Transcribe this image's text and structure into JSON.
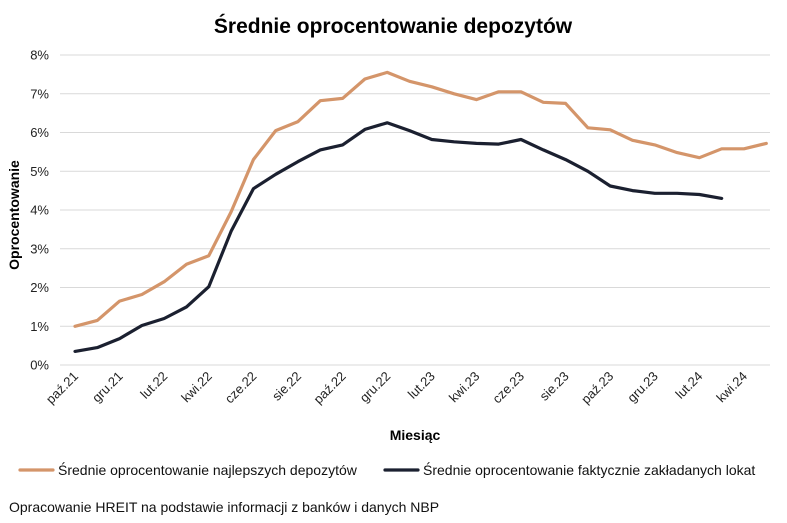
{
  "chart_data": {
    "type": "line",
    "title": "Średnie oprocentowanie depozytów",
    "xlabel": "Miesiąc",
    "ylabel": "Oprocentowanie",
    "ylim": [
      0,
      8
    ],
    "yticks": [
      "0%",
      "1%",
      "2%",
      "3%",
      "4%",
      "5%",
      "6%",
      "7%",
      "8%"
    ],
    "xtick_labels": [
      "paź.21",
      "gru.21",
      "lut.22",
      "kwi.22",
      "cze.22",
      "sie.22",
      "paź.22",
      "gru.22",
      "lut.23",
      "kwi.23",
      "cze.23",
      "sie.23",
      "paź.23",
      "gru.23",
      "lut.24",
      "kwi.24"
    ],
    "series": [
      {
        "name": "Średnie oprocentowanie najlepszych depozytów",
        "color": "#D4956A",
        "values": [
          1.0,
          1.15,
          1.65,
          1.82,
          2.15,
          2.6,
          2.82,
          3.95,
          5.3,
          6.05,
          6.28,
          6.82,
          6.88,
          7.38,
          7.55,
          7.32,
          7.18,
          7.0,
          6.85,
          7.05,
          7.05,
          6.78,
          6.75,
          6.12,
          6.07,
          5.8,
          5.68,
          5.48,
          5.35,
          5.58,
          5.58,
          5.72
        ]
      },
      {
        "name": "Średnie oprocentowanie faktycznie zakładanych lokat",
        "color": "#1B2030",
        "values": [
          0.35,
          0.45,
          0.68,
          1.02,
          1.2,
          1.5,
          2.02,
          3.45,
          4.55,
          4.92,
          5.25,
          5.55,
          5.68,
          6.08,
          6.25,
          6.05,
          5.82,
          5.76,
          5.72,
          5.7,
          5.82,
          5.55,
          5.3,
          5.0,
          4.62,
          4.5,
          4.43,
          4.43,
          4.4,
          4.3
        ]
      }
    ],
    "source": "Opracowanie HREIT na podstawie informacji z banków i danych NBP"
  }
}
